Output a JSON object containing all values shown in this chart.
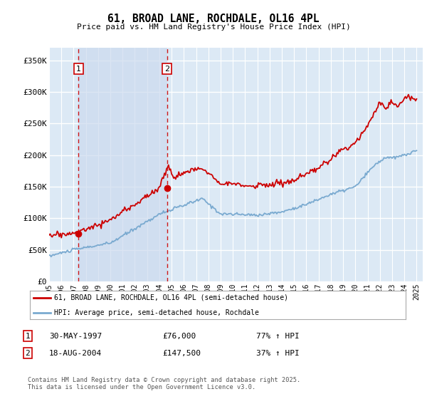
{
  "title": "61, BROAD LANE, ROCHDALE, OL16 4PL",
  "subtitle": "Price paid vs. HM Land Registry's House Price Index (HPI)",
  "xlim": [
    1995.0,
    2025.5
  ],
  "ylim": [
    0,
    370000
  ],
  "yticks": [
    0,
    50000,
    100000,
    150000,
    200000,
    250000,
    300000,
    350000
  ],
  "ytick_labels": [
    "£0",
    "£50K",
    "£100K",
    "£150K",
    "£200K",
    "£250K",
    "£300K",
    "£350K"
  ],
  "plot_bg_color": "#dce9f5",
  "highlight_color": "#c8d8ef",
  "grid_color": "#ffffff",
  "sale1_x": 1997.41,
  "sale1_y": 76000,
  "sale2_x": 2004.63,
  "sale2_y": 147500,
  "sale_color": "#cc0000",
  "hpi_color": "#7aaad0",
  "legend_label_red": "61, BROAD LANE, ROCHDALE, OL16 4PL (semi-detached house)",
  "legend_label_blue": "HPI: Average price, semi-detached house, Rochdale",
  "annotation1_label": "1",
  "annotation2_label": "2",
  "footer": "Contains HM Land Registry data © Crown copyright and database right 2025.\nThis data is licensed under the Open Government Licence v3.0.",
  "xticks": [
    1995,
    1996,
    1997,
    1998,
    1999,
    2000,
    2001,
    2002,
    2003,
    2004,
    2005,
    2006,
    2007,
    2008,
    2009,
    2010,
    2011,
    2012,
    2013,
    2014,
    2015,
    2016,
    2017,
    2018,
    2019,
    2020,
    2021,
    2022,
    2023,
    2024,
    2025
  ],
  "sale1_date": "30-MAY-1997",
  "sale1_price": "£76,000",
  "sale1_hpi": "77% ↑ HPI",
  "sale2_date": "18-AUG-2004",
  "sale2_price": "£147,500",
  "sale2_hpi": "37% ↑ HPI"
}
